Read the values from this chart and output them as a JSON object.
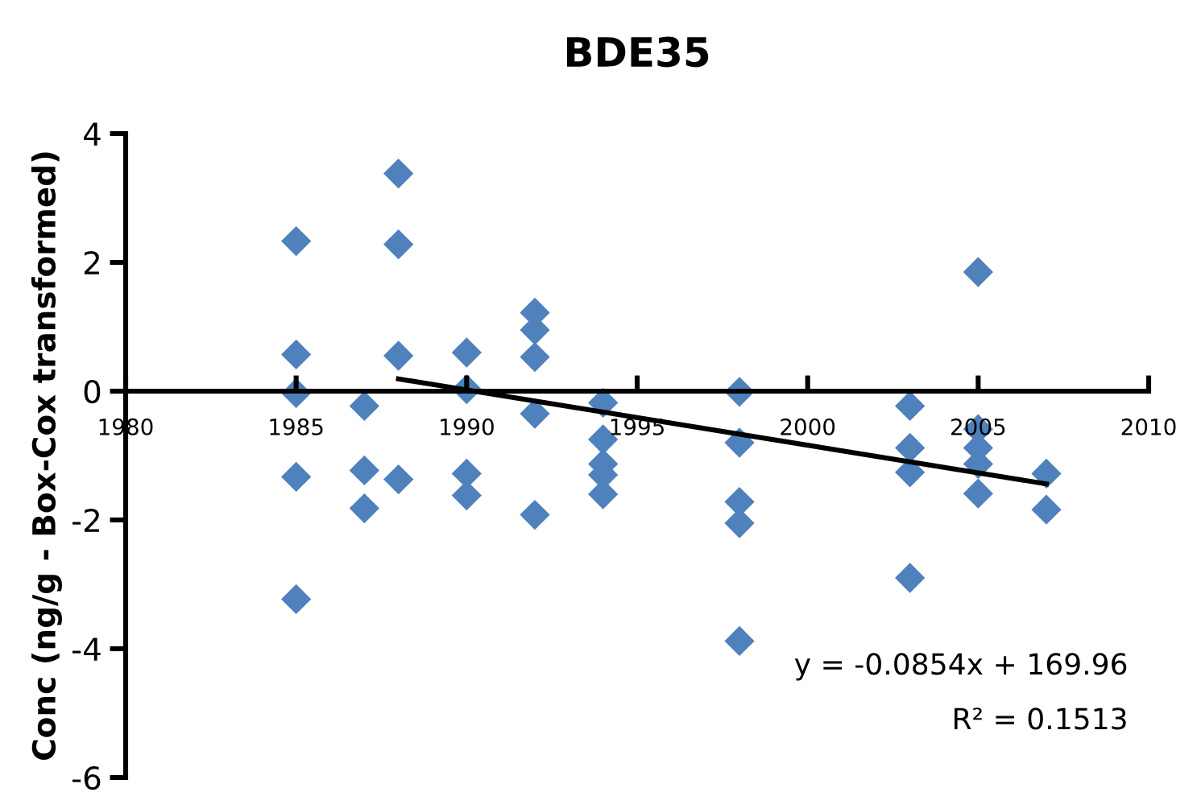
{
  "chart_data": {
    "type": "scatter",
    "title": "BDE35",
    "ylabel": "Conc (ng/g - Box-Cox transformed)",
    "xlim": [
      1980,
      2010
    ],
    "xticks": [
      1980,
      1985,
      1990,
      1995,
      2000,
      2005,
      2010
    ],
    "ylim": [
      -6,
      4
    ],
    "yticks": [
      -6,
      -4,
      -2,
      0,
      2,
      4
    ],
    "grid": false,
    "marker": "diamond",
    "series": [
      {
        "color": "#4f81bd",
        "x": [
          1985,
          1985,
          1985,
          1985,
          1985,
          1987,
          1987,
          1987,
          1988,
          1988,
          1988,
          1988,
          1990,
          1990,
          1990,
          1990,
          1992,
          1992,
          1992,
          1992,
          1992,
          1994,
          1994,
          1994,
          1994,
          1994,
          1998,
          1998,
          1998,
          1998,
          1998,
          2003,
          2003,
          2003,
          2003,
          2005,
          2005,
          2005,
          2005,
          2005,
          2007,
          2007
        ],
        "values": [
          2.33,
          0.57,
          -0.03,
          -1.33,
          -3.23,
          -0.23,
          -1.23,
          -1.82,
          3.38,
          2.28,
          0.55,
          -1.37,
          0.6,
          0.03,
          -1.28,
          -1.62,
          1.22,
          0.95,
          0.53,
          -0.35,
          -1.92,
          -0.18,
          -0.75,
          -1.13,
          -1.3,
          -1.6,
          -0.01,
          -0.8,
          -1.72,
          -2.05,
          -3.88,
          -0.23,
          -0.88,
          -1.26,
          -2.9,
          1.85,
          -0.59,
          -0.88,
          -1.13,
          -1.59,
          -1.28,
          -1.84
        ]
      },
      {
        "type": "line",
        "color": "#000000",
        "marker": "none",
        "x": [
          1988,
          2007
        ],
        "values": [
          0.19,
          -1.44
        ]
      }
    ],
    "annotations": [
      "y = -0.0854x + 169.96",
      "R² = 0.1513"
    ]
  }
}
